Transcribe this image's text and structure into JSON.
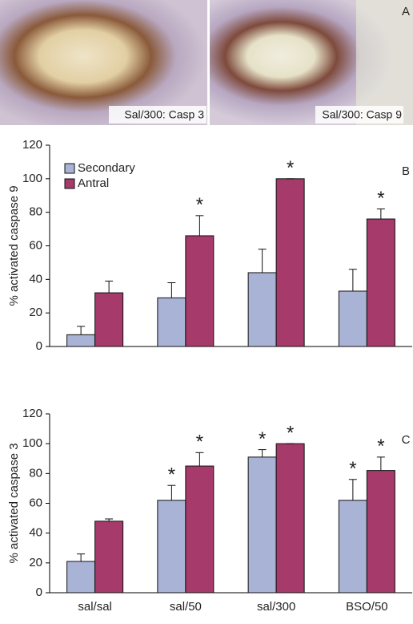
{
  "panel_a": {
    "label": "A",
    "images": [
      {
        "caption": "Sal/300: Casp 3"
      },
      {
        "caption": "Sal/300: Casp 9"
      }
    ]
  },
  "chart_data": [
    {
      "type": "bar",
      "panel_label": "B",
      "y_label": "% activated caspase 9",
      "categories": [
        null,
        null,
        null,
        null
      ],
      "series": [
        {
          "name": "Secondary",
          "color": "#a9b3d6",
          "values": [
            7,
            29,
            44,
            33
          ],
          "errors": [
            5,
            9,
            14,
            13
          ],
          "significance": [
            null,
            null,
            null,
            null
          ]
        },
        {
          "name": "Antral",
          "color": "#a63a6a",
          "values": [
            32,
            66,
            100,
            76
          ],
          "errors": [
            7,
            12,
            0,
            6
          ],
          "significance": [
            null,
            "*",
            "*",
            "*"
          ]
        }
      ],
      "ylim": [
        0,
        120
      ],
      "yticks": [
        0,
        20,
        40,
        60,
        80,
        100,
        120
      ],
      "grid": false,
      "legend": "top-left"
    },
    {
      "type": "bar",
      "panel_label": "C",
      "y_label": "% activated caspase 3",
      "categories": [
        "sal/sal",
        "sal/50",
        "sal/300",
        "BSO/50"
      ],
      "series": [
        {
          "color": "#a9b3d6",
          "values": [
            21,
            62,
            91,
            62
          ],
          "errors": [
            5,
            10,
            5,
            14
          ],
          "significance": [
            null,
            "*",
            "*",
            "*"
          ]
        },
        {
          "color": "#a63a6a",
          "values": [
            48,
            85,
            100,
            82
          ],
          "errors": [
            1.5,
            9,
            0,
            9
          ],
          "significance": [
            null,
            "*",
            "*",
            "*"
          ]
        }
      ],
      "ylim": [
        0,
        120
      ],
      "yticks": [
        0,
        20,
        40,
        60,
        80,
        100,
        120
      ],
      "grid": false,
      "legend": null
    }
  ]
}
